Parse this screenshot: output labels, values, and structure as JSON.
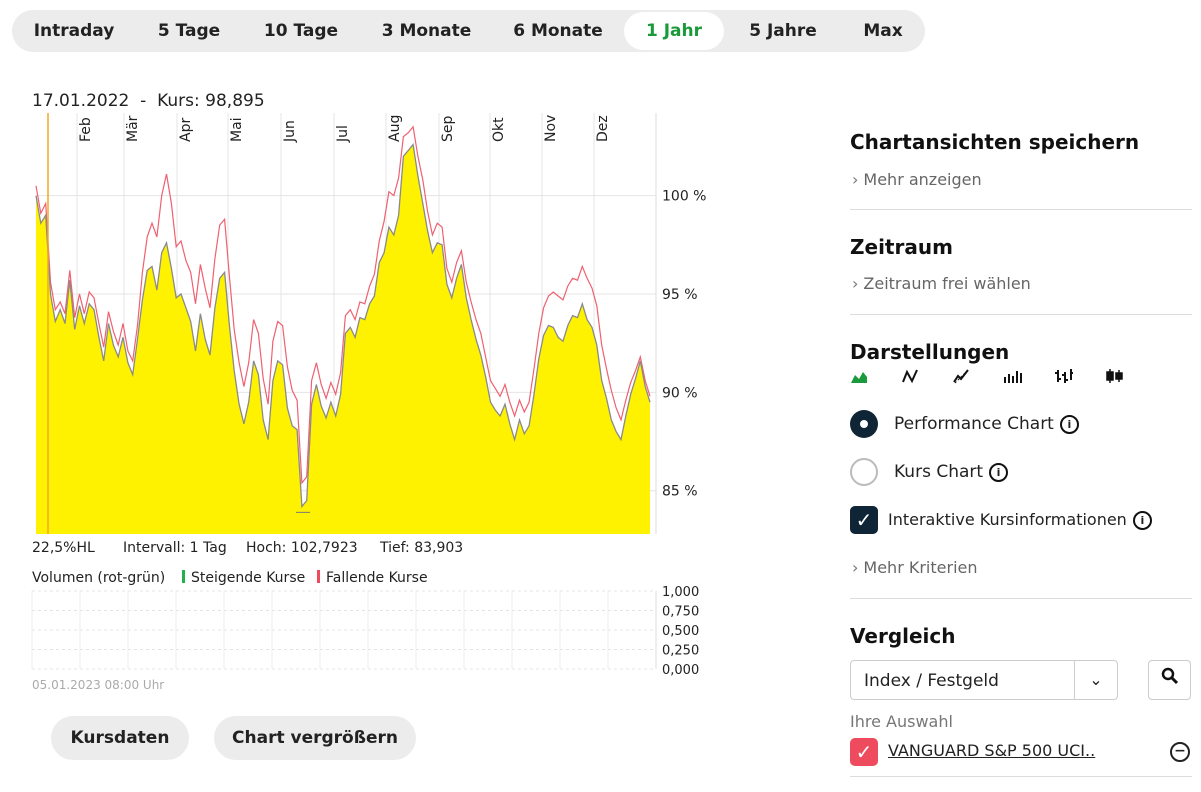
{
  "tabs": [
    {
      "label": "Intraday",
      "active": false
    },
    {
      "label": "5 Tage",
      "active": false
    },
    {
      "label": "10 Tage",
      "active": false
    },
    {
      "label": "3 Monate",
      "active": false
    },
    {
      "label": "6 Monate",
      "active": false
    },
    {
      "label": "1 Jahr",
      "active": true
    },
    {
      "label": "5 Jahre",
      "active": false
    },
    {
      "label": "Max",
      "active": false
    }
  ],
  "header": {
    "date": "17.01.2022",
    "sep": "-",
    "price_label": "Kurs: 98,895"
  },
  "stats": {
    "hl": "22,5%HL",
    "interval": "Intervall: 1 Tag",
    "high": "Hoch: 102,7923",
    "low": "Tief: 83,903"
  },
  "volume": {
    "label": "Volumen (rot-grün)",
    "rising": "Steigende Kurse",
    "falling": "Fallende Kurse",
    "timestamp": "05.01.2023 08:00 Uhr",
    "rising_color": "#22b04a",
    "falling_color": "#ef4b5e"
  },
  "buttons": {
    "kursdaten": "Kursdaten",
    "enlarge": "Chart vergrößern"
  },
  "sidebar": {
    "save_title": "Chartansichten speichern",
    "save_more": "Mehr anzeigen",
    "period_title": "Zeitraum",
    "period_more": "Zeitraum frei wählen",
    "display_title": "Darstellungen",
    "display_icons": [
      "area-chart-icon",
      "line-chart-icon",
      "line-chart-alt-icon",
      "bar-volume-icon",
      "ohlc-icon",
      "candlestick-icon"
    ],
    "opt_performance": "Performance Chart",
    "opt_kurs": "Kurs Chart",
    "opt_interactive": "Interaktive Kursinformationen",
    "more_criteria": "Mehr Kriterien",
    "compare_title": "Vergleich",
    "compare_select": "Index / Festgeld",
    "selection_label": "Ihre Auswahl",
    "selection_item": "VANGUARD S&P 500 UCI.."
  },
  "chart_data": {
    "type": "area",
    "months": [
      "Feb",
      "Mär",
      "Apr",
      "Mai",
      "Jun",
      "Jul",
      "Aug",
      "Sep",
      "Okt",
      "Nov",
      "Dez"
    ],
    "y_ticks": [
      "100 %",
      "95 %",
      "90 %",
      "85 %"
    ],
    "y_tick_values": [
      100,
      95,
      90,
      85
    ],
    "ylim": [
      82.8,
      104.2
    ],
    "area_color": "#fff200",
    "line_color": "#8a8a8a",
    "compare_color": "#ef6070",
    "marker_color": "#f5a623",
    "volume_ticks": [
      "1,000",
      "0,750",
      "0,500",
      "0,250",
      "0,000"
    ],
    "series": [
      {
        "name": "",
        "values": [
          100,
          98.6,
          99,
          95,
          93.6,
          94.2,
          93.5,
          95.7,
          93.2,
          94.4,
          93.5,
          94.5,
          94.2,
          92.8,
          91.6,
          93.5,
          92.4,
          91.8,
          92.8,
          91.5,
          90.9,
          92.7,
          94.7,
          96.2,
          96.4,
          95.2,
          97.1,
          97.6,
          96.3,
          94.8,
          95,
          94.3,
          93.6,
          92.1,
          94,
          92.7,
          91.9,
          94.3,
          95.8,
          96.1,
          93.4,
          91.1,
          89.4,
          88.4,
          89.5,
          91.6,
          90.9,
          88.6,
          87.6,
          90.6,
          91.6,
          91.4,
          89.2,
          88.3,
          88.1,
          84.2,
          84.5,
          89.4,
          90.4,
          89.3,
          88.7,
          89.5,
          88.8,
          89.9,
          93,
          93.3,
          92.8,
          93.8,
          93.7,
          94.5,
          94.9,
          96.6,
          97.1,
          98.4,
          98,
          99,
          102,
          102.3,
          102.6,
          101,
          99.6,
          98.2,
          97.1,
          97.6,
          97.5,
          95.5,
          94.8,
          95.8,
          96.5,
          94.8,
          93.7,
          92.7,
          91.9,
          90.8,
          89.5,
          89.1,
          88.8,
          89.4,
          88.4,
          87.6,
          88.6,
          87.9,
          88.3,
          89.9,
          91.7,
          92.9,
          93.4,
          93.3,
          92.8,
          92.6,
          93.4,
          93.9,
          93.8,
          94.5,
          93.7,
          93.3,
          92.4,
          90.6,
          89.7,
          88.6,
          88,
          87.6,
          88.8,
          89.9,
          90.7,
          91.6,
          90.3,
          89.5
        ]
      },
      {
        "name": "VANGUARD S&P 500 UCI..",
        "values": [
          100.5,
          99.1,
          99.6,
          95.6,
          94.2,
          94.6,
          94,
          96.2,
          93.8,
          95,
          94,
          95.1,
          94.8,
          93.5,
          92.3,
          94.1,
          93.1,
          92.4,
          93.5,
          92.1,
          91.6,
          93.4,
          96.1,
          97.9,
          98.6,
          97.9,
          100,
          101.1,
          99.6,
          97.4,
          97.7,
          96.7,
          96.1,
          94.5,
          96.5,
          95.3,
          94.3,
          96.8,
          98.5,
          98.8,
          95.9,
          93.2,
          91.5,
          90.3,
          91.5,
          93.7,
          93,
          90.7,
          89.4,
          92.6,
          93.6,
          93.4,
          91.3,
          90.1,
          89.6,
          85.4,
          85.7,
          90.6,
          91.5,
          90.4,
          89.7,
          90.5,
          89.9,
          91,
          93.9,
          94.2,
          93.7,
          94.6,
          94.5,
          95.4,
          96,
          97.7,
          98.7,
          100.2,
          100,
          100.9,
          103,
          103.2,
          103.5,
          102,
          100.8,
          99.2,
          98,
          98.6,
          98.4,
          96.3,
          95.6,
          96.6,
          97.2,
          95.6,
          94.6,
          93.7,
          93,
          91.8,
          90.6,
          90.2,
          89.8,
          90.4,
          89.5,
          88.8,
          89.6,
          89,
          89.5,
          91.2,
          93,
          94.3,
          94.9,
          95.1,
          94.9,
          94.7,
          95.4,
          95.8,
          95.7,
          96.4,
          95.8,
          95.3,
          94.4,
          92.4,
          91.2,
          90.1,
          89.2,
          88.6,
          89.6,
          90.5,
          91.1,
          91.8,
          90.6,
          89.8
        ]
      }
    ]
  }
}
